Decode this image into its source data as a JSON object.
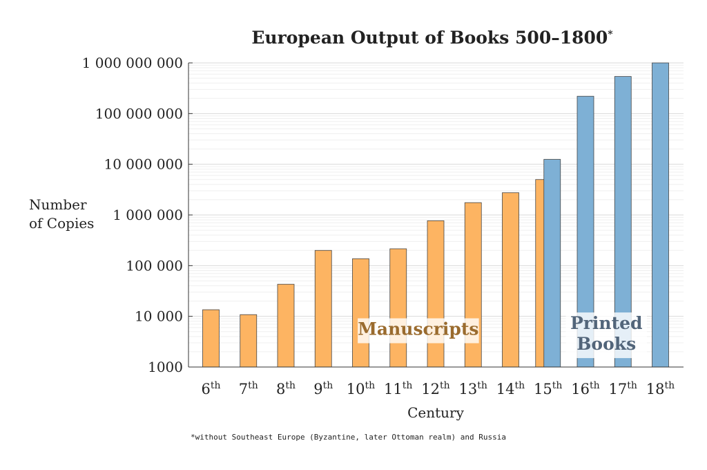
{
  "chart_data": {
    "type": "bar",
    "title": "European Output of Books 500–1800",
    "title_marker": "*",
    "xlabel": "Century",
    "ylabel": [
      "Number",
      "of Copies"
    ],
    "yscale": "log",
    "ylim": [
      1000,
      1000000000
    ],
    "yticks": [
      {
        "value": 1000,
        "label": "1000"
      },
      {
        "value": 10000,
        "label": "10 000"
      },
      {
        "value": 100000,
        "label": "100 000"
      },
      {
        "value": 1000000,
        "label": "1 000 000"
      },
      {
        "value": 10000000,
        "label": "10 000 000"
      },
      {
        "value": 100000000,
        "label": "100 000 000"
      },
      {
        "value": 1000000000,
        "label": "1 000 000 000"
      }
    ],
    "categories": [
      {
        "base": "6",
        "suffix": "th"
      },
      {
        "base": "7",
        "suffix": "th"
      },
      {
        "base": "8",
        "suffix": "th"
      },
      {
        "base": "9",
        "suffix": "th"
      },
      {
        "base": "10",
        "suffix": "th"
      },
      {
        "base": "11",
        "suffix": "th"
      },
      {
        "base": "12",
        "suffix": "th"
      },
      {
        "base": "13",
        "suffix": "th"
      },
      {
        "base": "14",
        "suffix": "th"
      },
      {
        "base": "15",
        "suffix": "th"
      },
      {
        "base": "16",
        "suffix": "th"
      },
      {
        "base": "17",
        "suffix": "th"
      },
      {
        "base": "18",
        "suffix": "th"
      }
    ],
    "series": [
      {
        "key": "manuscripts",
        "color": "#FDB462",
        "values": [
          13500,
          10800,
          43000,
          200000,
          137000,
          215000,
          770000,
          1750000,
          2750000,
          5000000,
          null,
          null,
          null
        ]
      },
      {
        "key": "printed",
        "color": "#7EB0D5",
        "values": [
          null,
          null,
          null,
          null,
          null,
          null,
          null,
          null,
          null,
          12500000,
          220000000,
          540000000,
          1000000000
        ]
      }
    ],
    "annotations": [
      {
        "key": "manuscripts",
        "lines": [
          "Manuscripts"
        ],
        "color": "#9A6B2E"
      },
      {
        "key": "printed",
        "lines": [
          "Printed",
          "Books"
        ],
        "color": "#52657A"
      }
    ],
    "grid": true,
    "footnote": "*without Southeast Europe (Byzantine, later Ottoman realm) and Russia"
  }
}
